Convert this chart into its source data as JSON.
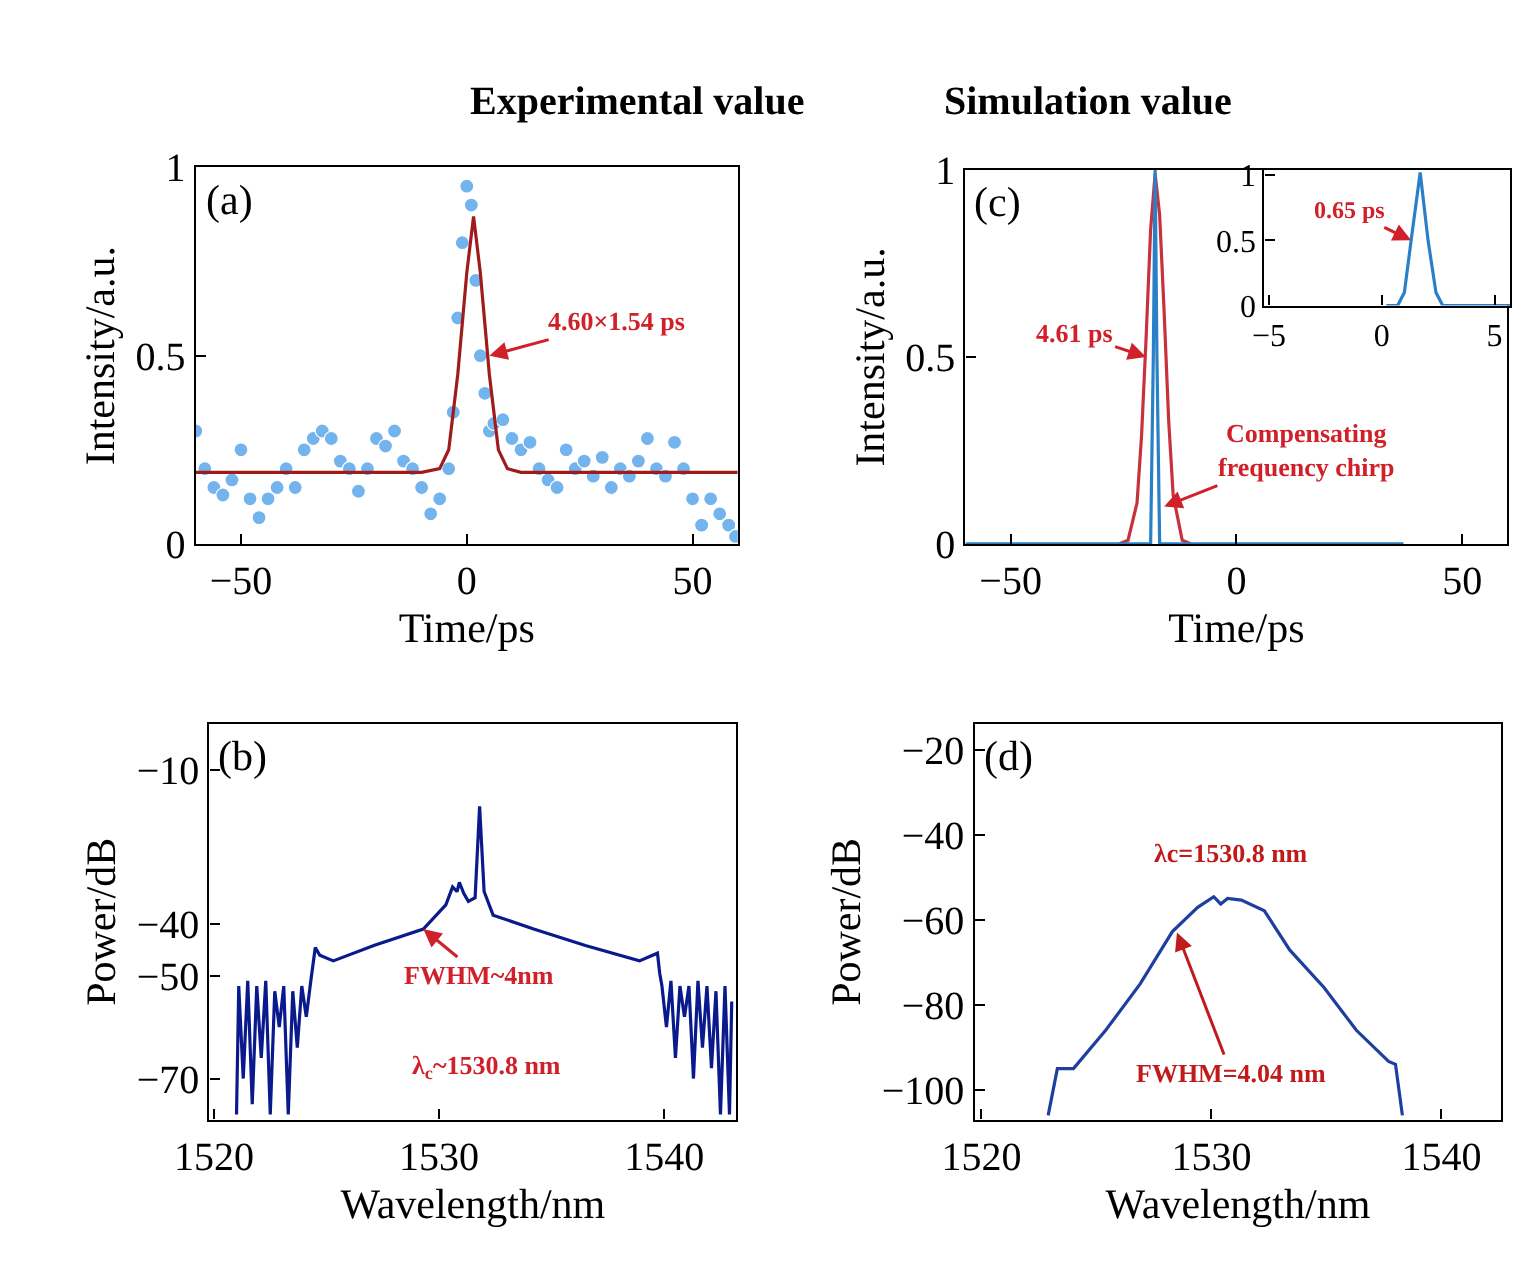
{
  "chart_data": [
    {
      "type": "scatter",
      "title": "Experimental value",
      "xlabel": "Time/ps",
      "ylabel": "Intensity/a.u.",
      "xlim": [
        -60,
        60
      ],
      "ylim": [
        0,
        1
      ],
      "xticks": [
        -50,
        0,
        50
      ],
      "yticks": [
        0,
        0.5,
        1
      ],
      "marker": "circle",
      "annotations": [
        "(a)",
        {
          "text": "4.60×1.54 ps",
          "x": 5,
          "y": 0.5
        }
      ],
      "series": [
        {
          "color": "#74b4ee",
          "x": [
            -60,
            -58,
            -56,
            -54,
            -52,
            -50,
            -48,
            -46,
            -44,
            -42,
            -40,
            -38,
            -36,
            -34,
            -32,
            -30,
            -28,
            -26,
            -24,
            -22,
            -20,
            -18,
            -16,
            -14,
            -12,
            -10,
            -8,
            -6,
            -4,
            -3,
            -2,
            -1,
            0,
            1,
            2,
            3,
            4,
            5,
            6,
            8,
            10,
            12,
            14,
            16,
            18,
            20,
            22,
            24,
            26,
            28,
            30,
            32,
            34,
            36,
            38,
            40,
            42,
            44,
            46,
            48,
            50,
            52,
            54,
            56,
            58,
            59.5
          ],
          "values": [
            0.3,
            0.2,
            0.15,
            0.13,
            0.17,
            0.25,
            0.12,
            0.07,
            0.12,
            0.15,
            0.2,
            0.15,
            0.25,
            0.28,
            0.3,
            0.28,
            0.22,
            0.2,
            0.14,
            0.2,
            0.28,
            0.26,
            0.3,
            0.22,
            0.2,
            0.15,
            0.08,
            0.12,
            0.2,
            0.35,
            0.6,
            0.8,
            0.95,
            0.9,
            0.7,
            0.5,
            0.4,
            0.3,
            0.32,
            0.33,
            0.28,
            0.25,
            0.27,
            0.2,
            0.17,
            0.15,
            0.25,
            0.2,
            0.22,
            0.18,
            0.23,
            0.15,
            0.2,
            0.18,
            0.22,
            0.28,
            0.2,
            0.18,
            0.27,
            0.2,
            0.12,
            0.05,
            0.12,
            0.08,
            0.05,
            0.02
          ]
        },
        {
          "type": "line",
          "marker": "none",
          "color": "#a01c1c",
          "x": [
            -60,
            -10,
            -6,
            -4,
            -2,
            0,
            1.5,
            3,
            5,
            7,
            9,
            12,
            60
          ],
          "values": [
            0.19,
            0.19,
            0.2,
            0.25,
            0.45,
            0.72,
            0.87,
            0.72,
            0.45,
            0.25,
            0.2,
            0.19,
            0.19
          ]
        }
      ]
    },
    {
      "type": "line",
      "title": "Simulation value",
      "xlabel": "Time/ps",
      "ylabel": "Intensity/a.u.",
      "xlim": [
        -60,
        60
      ],
      "ylim": [
        0,
        1
      ],
      "xticks": [
        -50,
        0,
        50
      ],
      "yticks": [
        0,
        0.5,
        1
      ],
      "annotations": [
        "(c)",
        {
          "text": "4.61 ps",
          "x": -20,
          "y": 0.5
        },
        {
          "text": "Compensating\nfrequency chirp",
          "x": -16,
          "y": 0.1
        }
      ],
      "series": [
        {
          "color": "#c8323c",
          "x": [
            -26,
            -24,
            -22,
            -21,
            -20,
            -19,
            -18,
            -17,
            -16,
            -15,
            -14,
            -12,
            -10
          ],
          "values": [
            0,
            0.01,
            0.11,
            0.29,
            0.55,
            0.84,
            0.99,
            0.88,
            0.62,
            0.33,
            0.13,
            0.01,
            0
          ]
        },
        {
          "color": "#2a80c8",
          "x": [
            -60,
            -19,
            -18.4,
            -18,
            -17.6,
            -17,
            37
          ],
          "values": [
            0,
            0,
            0.5,
            1,
            0.5,
            0,
            0
          ]
        }
      ]
    },
    {
      "type": "line",
      "xlim": [
        -5.2,
        5.7
      ],
      "ylim": [
        0,
        1.04
      ],
      "xticks": [
        -5,
        0,
        5
      ],
      "yticks": [
        0,
        0.5,
        1
      ],
      "annotations": [
        {
          "text": "0.65 ps",
          "x": 1.3,
          "y": 0.5
        }
      ],
      "series": [
        {
          "color": "#2a80c8",
          "x": [
            0.2,
            0.7,
            1.0,
            1.3,
            1.7,
            2.05,
            2.4,
            2.7,
            5.7
          ],
          "values": [
            0,
            0,
            0.1,
            0.5,
            1.02,
            0.5,
            0.1,
            0,
            0
          ]
        }
      ]
    },
    {
      "type": "line",
      "xlabel": "Wavelength/nm",
      "ylabel": "Power/dB",
      "xlim": [
        1519.8,
        1543.2
      ],
      "ylim": [
        -78,
        -1
      ],
      "xticks": [
        1520,
        1530,
        1540
      ],
      "yticks": [
        -70,
        -50,
        -40,
        -10
      ],
      "annotations": [
        "(b)",
        {
          "text": "FWHM~4nm",
          "x": 1529.3,
          "y": -40.9
        },
        "λ$_{c}$~1530.8 nm"
      ],
      "series": [
        {
          "color": "#0a1a8c",
          "x": [
            1521.0,
            1521.1,
            1521.3,
            1521.5,
            1521.7,
            1521.9,
            1522.1,
            1522.3,
            1522.5,
            1522.7,
            1522.9,
            1523.1,
            1523.3,
            1523.5,
            1523.7,
            1523.9,
            1524.1,
            1524.3,
            1524.5,
            1524.7,
            1525.3,
            1527.1,
            1529.3,
            1530.3,
            1530.6,
            1530.8,
            1530.9,
            1531.1,
            1531.3,
            1531.6,
            1531.8,
            1532.0,
            1532.4,
            1534.2,
            1536.5,
            1538.9,
            1539.7,
            1539.8,
            1539.9,
            1540.1,
            1540.3,
            1540.5,
            1540.7,
            1540.9,
            1541.1,
            1541.3,
            1541.5,
            1541.7,
            1541.9,
            1542.1,
            1542.3,
            1542.5,
            1542.7,
            1542.9,
            1543.0
          ],
          "values": [
            -77,
            -52,
            -70,
            -51,
            -75,
            -52,
            -66,
            -51,
            -77,
            -53,
            -60,
            -52,
            -77,
            -53,
            -64,
            -52,
            -58,
            -51,
            -44.5,
            -46,
            -47.1,
            -44.1,
            -40.9,
            -36.2,
            -32.7,
            -33.6,
            -31.8,
            -34,
            -35.5,
            -34.8,
            -17,
            -33.6,
            -38.2,
            -40.9,
            -44.1,
            -47.1,
            -45.6,
            -49.5,
            -52,
            -60,
            -51,
            -66,
            -52,
            -58,
            -52,
            -70,
            -51,
            -64,
            -52,
            -68,
            -53,
            -77,
            -52,
            -77,
            -55
          ]
        }
      ]
    },
    {
      "type": "line",
      "xlabel": "Wavelength/nm",
      "ylabel": "Power/dB",
      "xlim": [
        1519.7,
        1542.6
      ],
      "ylim": [
        -107,
        -14
      ],
      "xticks": [
        1520,
        1530,
        1540
      ],
      "yticks": [
        -100,
        -80,
        -60,
        -40,
        -20
      ],
      "annotations": [
        "(d)",
        "λc=1530.8 nm",
        {
          "text": "FWHM=4.04 nm",
          "x": 1528.5,
          "y": -63
        }
      ],
      "series": [
        {
          "color": "#1f3f9f",
          "x": [
            1522.9,
            1523.3,
            1524.0,
            1525.4,
            1526.9,
            1528.3,
            1529.4,
            1530.1,
            1530.4,
            1530.7,
            1531.3,
            1532.3,
            1533.4,
            1534.9,
            1536.3,
            1537.7,
            1538.0,
            1538.3
          ],
          "values": [
            -106,
            -95,
            -95,
            -86,
            -75.1,
            -62.8,
            -57.1,
            -54.6,
            -56.3,
            -55,
            -55.4,
            -57.9,
            -67.1,
            -76,
            -86,
            -93.3,
            -94,
            -106
          ]
        }
      ]
    }
  ]
}
